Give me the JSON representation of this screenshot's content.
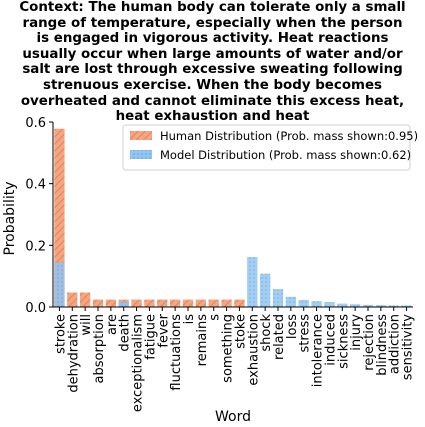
{
  "chart_data": {
    "type": "bar",
    "title_lines": [
      "Context: The human body can tolerate only a small",
      "range of temperature, especially when the person",
      "is engaged in vigorous activity. Heat reactions",
      "usually occur when large amounts of water and/or",
      "salt are lost through excessive sweating following",
      "strenuous exercise. When the body becomes",
      "overheated and cannot eliminate this excess heat,",
      "heat exhaustion and heat"
    ],
    "xlabel": "Word",
    "ylabel": "Probability",
    "ylim": [
      0,
      0.6
    ],
    "yticks": [
      "0.0",
      "0.2",
      "0.4",
      "0.6"
    ],
    "ytick_values": [
      0,
      0.2,
      0.4,
      0.6
    ],
    "categories": [
      "stroke",
      "dehydration",
      "will",
      "absorption",
      "are",
      "death",
      "exceptionalism",
      "fatigue",
      "fever",
      "fluctuations",
      "is",
      "remains",
      "s",
      "something",
      "stoke",
      "exhaustion",
      "shock",
      "related",
      "loss",
      "stress",
      "intolerance",
      "induced",
      "sickness",
      "injury",
      "rejection",
      "blindness",
      "addiction",
      "sensitivity"
    ],
    "legend_position": "top-right",
    "series": [
      {
        "name": "Human Distribution (Prob. mass shown:0.95)",
        "color": "#F4A582",
        "hatch": "diagonal",
        "values": [
          0.578,
          0.047,
          0.047,
          0.024,
          0.024,
          0.024,
          0.024,
          0.024,
          0.024,
          0.024,
          0.024,
          0.024,
          0.024,
          0.024,
          0.024,
          0,
          0,
          0,
          0,
          0,
          0,
          0,
          0,
          0,
          0,
          0,
          0,
          0
        ]
      },
      {
        "name": "Model Distribution (Prob. mass shown:0.62)",
        "color": "#92C5F2",
        "hatch": "dots",
        "values": [
          0.145,
          0,
          0,
          0,
          0,
          0.017,
          0,
          0,
          0,
          0,
          0,
          0,
          0,
          0,
          0,
          0.162,
          0.108,
          0.058,
          0.033,
          0.023,
          0.019,
          0.016,
          0.011,
          0.009,
          0.007,
          0.006,
          0.005,
          0.005
        ]
      }
    ]
  }
}
